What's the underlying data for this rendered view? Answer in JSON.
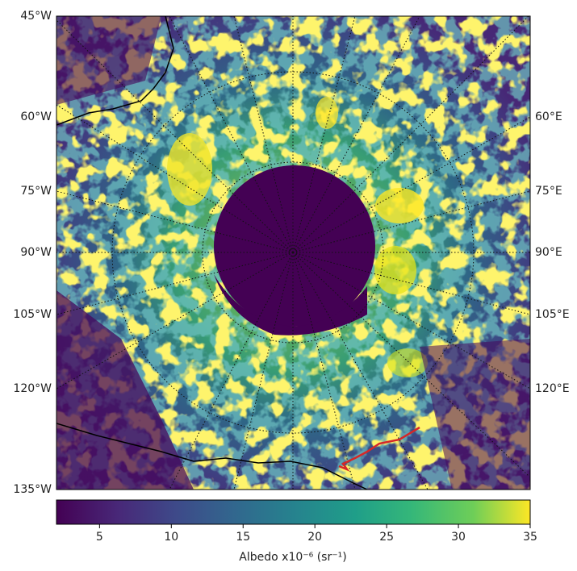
{
  "map": {
    "left_labels": [
      "45°W",
      "60°W",
      "75°W",
      "90°W",
      "105°W",
      "120°W",
      "135°W"
    ],
    "right_labels": [
      "60°E",
      "75°E",
      "90°E",
      "105°E",
      "120°E"
    ],
    "colorbar": {
      "label": "Albedo x10⁻⁶ (sr⁻¹)",
      "range": [
        2,
        35
      ],
      "ticks": [
        5,
        10,
        15,
        20,
        25,
        30,
        35
      ]
    }
  }
}
